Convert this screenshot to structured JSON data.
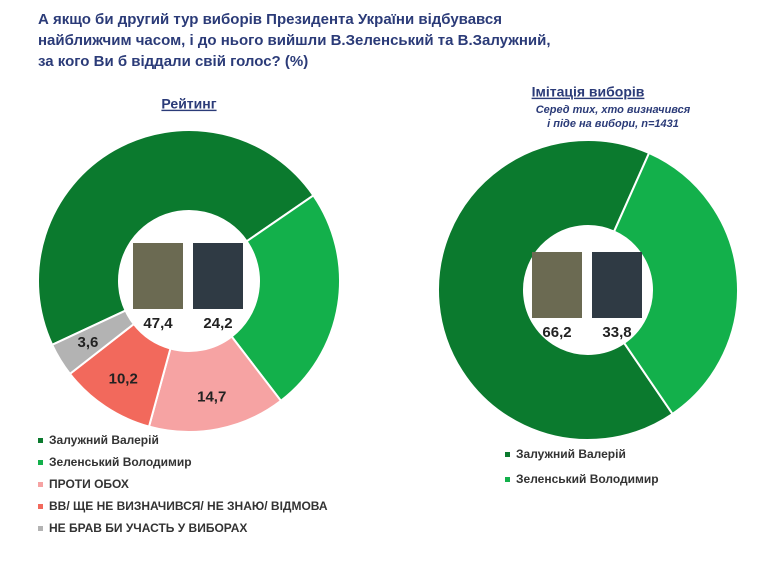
{
  "title": [
    "А якщо би другий тур виборів Президента України відбувався",
    "найближчим часом, і до нього вийшли В.Зеленський та В.Залужний,",
    "за кого Ви б віддали свій голос? (%)"
  ],
  "chart_data": [
    {
      "type": "donut",
      "title": "Рейтинг",
      "categories": [
        "Залужний Валерій",
        "Зеленський Володимир",
        "ПРОТИ ОБОХ",
        "ВВ/ ЩЕ НЕ ВИЗНАЧИВСЯ/ НЕ ЗНАЮ/ ВІДМОВА",
        "НЕ БРАВ БИ УЧАСТЬ У ВИБОРАХ"
      ],
      "values": [
        47.4,
        24.2,
        14.7,
        10.2,
        3.6
      ],
      "value_labels": [
        "47,4",
        "24,2",
        "14,7",
        "10,2",
        "3,6"
      ],
      "colors": [
        "#0b7a2e",
        "#13b04b",
        "#f6a3a3",
        "#f2695c",
        "#b3b3b3"
      ]
    },
    {
      "type": "donut",
      "title": "Імітація виборів",
      "subtitle": [
        "Серед тих, хто визначився",
        "і піде на вибори, n=1431"
      ],
      "categories": [
        "Залужний Валерій",
        "Зеленський Володимир"
      ],
      "values": [
        66.2,
        33.8
      ],
      "value_labels": [
        "66,2",
        "33,8"
      ],
      "colors": [
        "#0b7a2e",
        "#13b04b"
      ]
    }
  ]
}
